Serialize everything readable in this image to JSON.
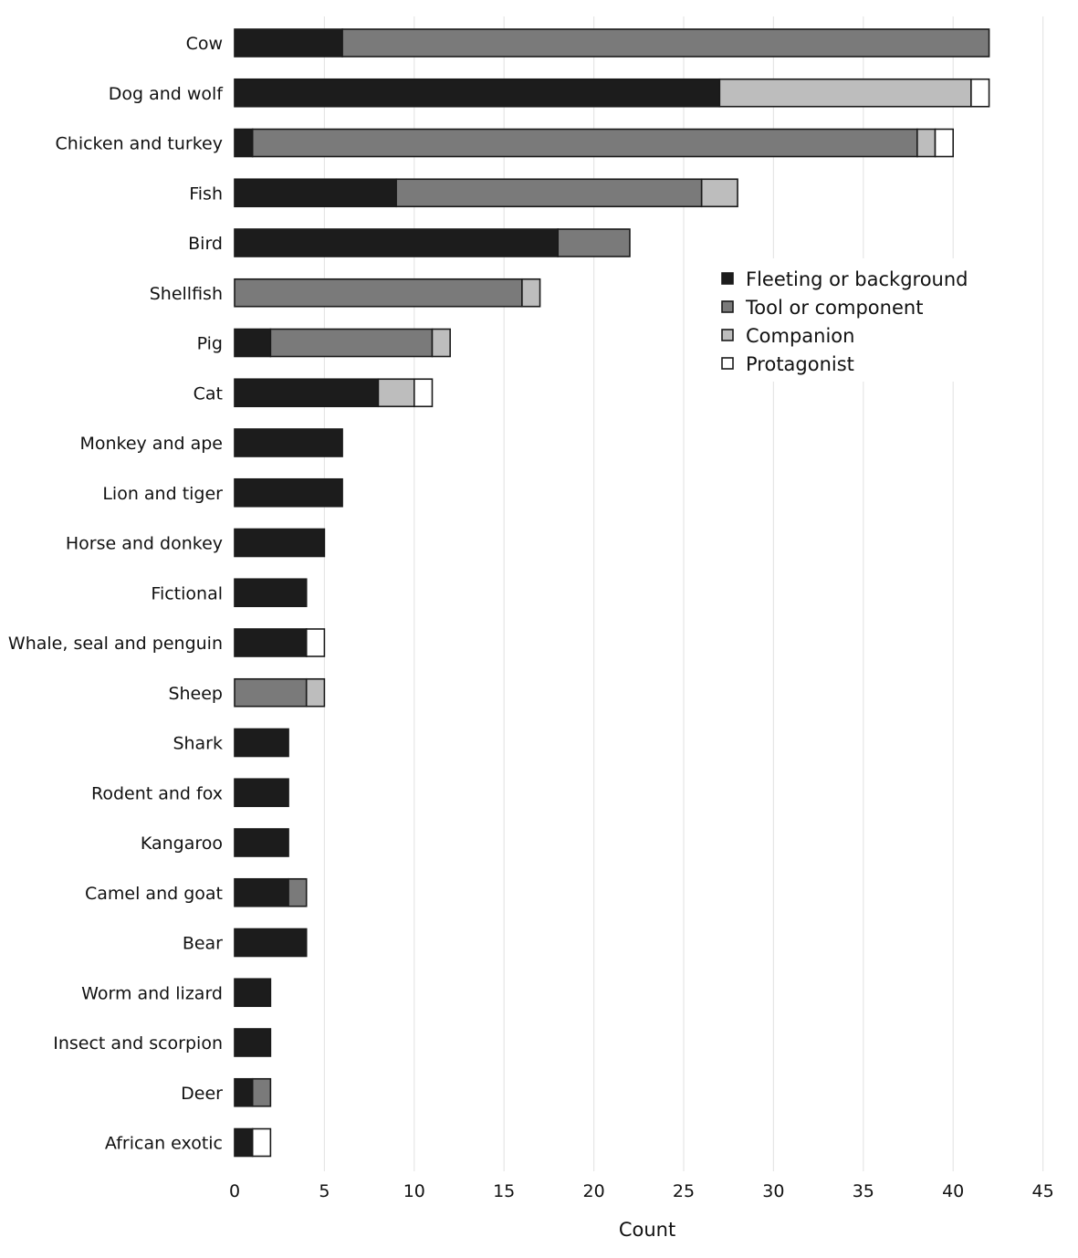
{
  "chart_data": {
    "type": "bar",
    "orientation": "horizontal",
    "stacked": true,
    "title": "",
    "xlabel": "Count",
    "ylabel": "",
    "xlim": [
      0,
      45
    ],
    "xticks": [
      0,
      5,
      10,
      15,
      20,
      25,
      30,
      35,
      40,
      45
    ],
    "grid": "vertical",
    "legend_position": "top-right",
    "categories": [
      "Cow",
      "Dog and wolf",
      "Chicken and turkey",
      "Fish",
      "Bird",
      "Shellfish",
      "Pig",
      "Cat",
      "Monkey and ape",
      "Lion and tiger",
      "Horse and donkey",
      "Fictional",
      "Whale, seal and penguin",
      "Sheep",
      "Shark",
      "Rodent and fox",
      "Kangaroo",
      "Camel and goat",
      "Bear",
      "Worm and lizard",
      "Insect and scorpion",
      "Deer",
      "African exotic"
    ],
    "series": [
      {
        "name": "Fleeting or background",
        "color": "#1c1c1c",
        "values": [
          6,
          27,
          1,
          9,
          18,
          0,
          2,
          8,
          6,
          6,
          5,
          4,
          4,
          0,
          3,
          3,
          3,
          3,
          4,
          2,
          2,
          1,
          1
        ]
      },
      {
        "name": "Tool or component",
        "color": "#7a7a7a",
        "values": [
          36,
          0,
          37,
          17,
          4,
          16,
          9,
          0,
          0,
          0,
          0,
          0,
          0,
          4,
          0,
          0,
          0,
          1,
          0,
          0,
          0,
          1,
          0
        ]
      },
      {
        "name": "Companion",
        "color": "#bdbdbd",
        "values": [
          0,
          14,
          1,
          2,
          0,
          1,
          1,
          2,
          0,
          0,
          0,
          0,
          0,
          1,
          0,
          0,
          0,
          0,
          0,
          0,
          0,
          0,
          0
        ]
      },
      {
        "name": "Protagonist",
        "color": "#ffffff",
        "values": [
          0,
          1,
          1,
          0,
          0,
          0,
          0,
          1,
          0,
          0,
          0,
          0,
          1,
          0,
          0,
          0,
          0,
          0,
          0,
          0,
          0,
          0,
          1
        ]
      }
    ]
  }
}
